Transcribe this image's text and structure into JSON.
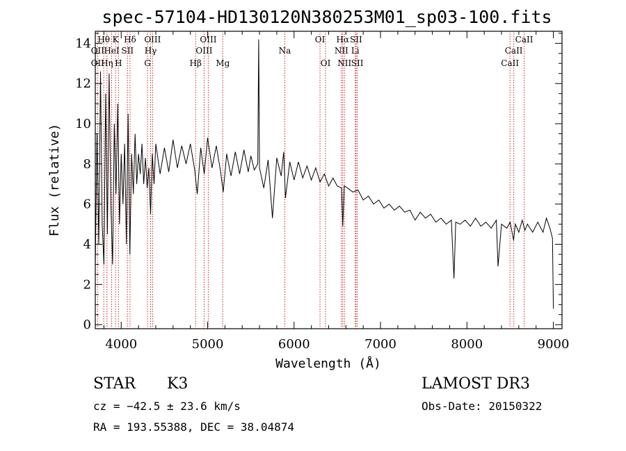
{
  "chart_data": {
    "type": "line",
    "title": "spec-57104-HD130120N380253M01_sp03-100.fits",
    "xlabel": "Wavelength (Å)",
    "ylabel": "Flux (relative)",
    "xlim": [
      3700,
      9100
    ],
    "ylim": [
      -0.2,
      14.6
    ],
    "x_ticks": [
      4000,
      5000,
      6000,
      7000,
      8000,
      9000
    ],
    "y_ticks": [
      0,
      2,
      4,
      6,
      8,
      10,
      12,
      14
    ],
    "x_tick_labels": [
      "4000",
      "5000",
      "6000",
      "7000",
      "8000",
      "9000"
    ],
    "y_tick_labels": [
      "0",
      "2",
      "4",
      "6",
      "8",
      "10",
      "12",
      "14"
    ],
    "series": [
      {
        "name": "spectrum",
        "points": [
          [
            3700,
            3.0
          ],
          [
            3720,
            9.5
          ],
          [
            3740,
            4.0
          ],
          [
            3760,
            12.6
          ],
          [
            3780,
            5.0
          ],
          [
            3800,
            3.0
          ],
          [
            3820,
            11.5
          ],
          [
            3840,
            4.5
          ],
          [
            3860,
            12.5
          ],
          [
            3880,
            6.0
          ],
          [
            3900,
            3.0
          ],
          [
            3920,
            10.0
          ],
          [
            3940,
            6.5
          ],
          [
            3960,
            11.0
          ],
          [
            3980,
            5.0
          ],
          [
            4000,
            8.5
          ],
          [
            4020,
            6.0
          ],
          [
            4040,
            9.0
          ],
          [
            4060,
            4.0
          ],
          [
            4080,
            10.5
          ],
          [
            4100,
            3.5
          ],
          [
            4120,
            8.5
          ],
          [
            4140,
            6.5
          ],
          [
            4160,
            9.5
          ],
          [
            4180,
            7.0
          ],
          [
            4200,
            8.5
          ],
          [
            4220,
            7.5
          ],
          [
            4240,
            9.0
          ],
          [
            4260,
            7.0
          ],
          [
            4280,
            8.3
          ],
          [
            4300,
            6.8
          ],
          [
            4320,
            7.8
          ],
          [
            4340,
            5.5
          ],
          [
            4360,
            8.5
          ],
          [
            4380,
            7.0
          ],
          [
            4400,
            9.0
          ],
          [
            4450,
            7.5
          ],
          [
            4500,
            8.8
          ],
          [
            4550,
            7.6
          ],
          [
            4600,
            9.2
          ],
          [
            4650,
            7.8
          ],
          [
            4700,
            8.9
          ],
          [
            4750,
            8.0
          ],
          [
            4800,
            9.0
          ],
          [
            4850,
            7.7
          ],
          [
            4880,
            6.5
          ],
          [
            4920,
            8.8
          ],
          [
            4960,
            7.5
          ],
          [
            5000,
            9.3
          ],
          [
            5050,
            7.8
          ],
          [
            5100,
            8.9
          ],
          [
            5150,
            7.6
          ],
          [
            5180,
            6.6
          ],
          [
            5220,
            8.5
          ],
          [
            5270,
            7.4
          ],
          [
            5320,
            8.6
          ],
          [
            5370,
            7.5
          ],
          [
            5420,
            8.7
          ],
          [
            5470,
            7.6
          ],
          [
            5500,
            8.4
          ],
          [
            5540,
            7.7
          ],
          [
            5580,
            8.0
          ],
          [
            5590,
            14.2
          ],
          [
            5600,
            7.8
          ],
          [
            5650,
            6.8
          ],
          [
            5700,
            8.2
          ],
          [
            5750,
            5.3
          ],
          [
            5800,
            8.3
          ],
          [
            5850,
            7.4
          ],
          [
            5880,
            8.6
          ],
          [
            5900,
            6.3
          ],
          [
            5950,
            8.1
          ],
          [
            6000,
            7.2
          ],
          [
            6050,
            8.1
          ],
          [
            6100,
            7.3
          ],
          [
            6150,
            7.9
          ],
          [
            6200,
            7.2
          ],
          [
            6250,
            7.8
          ],
          [
            6300,
            7.1
          ],
          [
            6350,
            7.5
          ],
          [
            6400,
            6.9
          ],
          [
            6450,
            7.3
          ],
          [
            6500,
            6.9
          ],
          [
            6550,
            6.8
          ],
          [
            6563,
            4.9
          ],
          [
            6580,
            6.9
          ],
          [
            6620,
            6.8
          ],
          [
            6680,
            6.6
          ],
          [
            6740,
            6.7
          ],
          [
            6800,
            6.2
          ],
          [
            6860,
            6.4
          ],
          [
            6920,
            6.0
          ],
          [
            6980,
            6.2
          ],
          [
            7040,
            5.8
          ],
          [
            7100,
            6.0
          ],
          [
            7160,
            5.7
          ],
          [
            7220,
            5.9
          ],
          [
            7280,
            5.6
          ],
          [
            7340,
            5.7
          ],
          [
            7400,
            5.2
          ],
          [
            7460,
            5.6
          ],
          [
            7520,
            5.3
          ],
          [
            7580,
            5.5
          ],
          [
            7640,
            5.1
          ],
          [
            7700,
            5.3
          ],
          [
            7760,
            5.0
          ],
          [
            7820,
            5.2
          ],
          [
            7850,
            2.3
          ],
          [
            7870,
            5.1
          ],
          [
            7920,
            5.0
          ],
          [
            7980,
            5.2
          ],
          [
            8040,
            4.9
          ],
          [
            8100,
            5.3
          ],
          [
            8160,
            4.9
          ],
          [
            8220,
            5.1
          ],
          [
            8280,
            4.8
          ],
          [
            8340,
            5.2
          ],
          [
            8360,
            2.9
          ],
          [
            8400,
            5.0
          ],
          [
            8460,
            4.8
          ],
          [
            8500,
            5.1
          ],
          [
            8540,
            4.2
          ],
          [
            8560,
            5.0
          ],
          [
            8600,
            4.6
          ],
          [
            8640,
            5.2
          ],
          [
            8670,
            4.7
          ],
          [
            8700,
            5.0
          ],
          [
            8760,
            4.6
          ],
          [
            8820,
            5.1
          ],
          [
            8880,
            4.6
          ],
          [
            8920,
            5.3
          ],
          [
            8960,
            4.8
          ],
          [
            8990,
            4.3
          ],
          [
            9000,
            0.8
          ]
        ]
      }
    ],
    "spectral_lines": [
      {
        "label": "Hθ",
        "wavelength": 3798,
        "row": 1
      },
      {
        "label": "K",
        "wavelength": 3934,
        "row": 1
      },
      {
        "label": "Hδ",
        "wavelength": 4102,
        "row": 1
      },
      {
        "label": "OIII",
        "wavelength": 4363,
        "row": 1
      },
      {
        "label": "OIII",
        "wavelength": 5007,
        "row": 1
      },
      {
        "label": "OI",
        "wavelength": 6300,
        "row": 1
      },
      {
        "label": "Hα",
        "wavelength": 6563,
        "row": 1
      },
      {
        "label": "SII",
        "wavelength": 6717,
        "row": 1
      },
      {
        "label": "CaII",
        "wavelength": 8662,
        "row": 1
      },
      {
        "label": "OII",
        "wavelength": 3727,
        "row": 2
      },
      {
        "label": "HeI",
        "wavelength": 3889,
        "row": 2
      },
      {
        "label": "SII",
        "wavelength": 4072,
        "row": 2
      },
      {
        "label": "Hγ",
        "wavelength": 4340,
        "row": 2
      },
      {
        "label": "OIII",
        "wavelength": 4959,
        "row": 2
      },
      {
        "label": "Na",
        "wavelength": 5893,
        "row": 2
      },
      {
        "label": "NII",
        "wavelength": 6548,
        "row": 2
      },
      {
        "label": "Li",
        "wavelength": 6708,
        "row": 2
      },
      {
        "label": "CaII",
        "wavelength": 8542,
        "row": 2
      },
      {
        "label": "OII",
        "wavelength": 3727,
        "row": 3
      },
      {
        "label": "Hη",
        "wavelength": 3835,
        "row": 3
      },
      {
        "label": "H",
        "wavelength": 3968,
        "row": 3
      },
      {
        "label": "G",
        "wavelength": 4304,
        "row": 3
      },
      {
        "label": "Hβ",
        "wavelength": 4861,
        "row": 3
      },
      {
        "label": "Mg",
        "wavelength": 5175,
        "row": 3
      },
      {
        "label": "OI",
        "wavelength": 6364,
        "row": 3
      },
      {
        "label": "NII",
        "wavelength": 6583,
        "row": 3
      },
      {
        "label": "SII",
        "wavelength": 6731,
        "row": 3
      },
      {
        "label": "CaII",
        "wavelength": 8498,
        "row": 3
      }
    ],
    "line_marker_color": "#cc2222",
    "series_color": "#000000"
  },
  "info": {
    "class_label": "STAR",
    "subclass": "K3",
    "survey": "LAMOST DR3",
    "cz": "cz = −42.5 ± 23.6 km/s",
    "obs_date": "Obs-Date: 20150322",
    "radec": "RA = 193.55388, DEC =  38.04874"
  }
}
